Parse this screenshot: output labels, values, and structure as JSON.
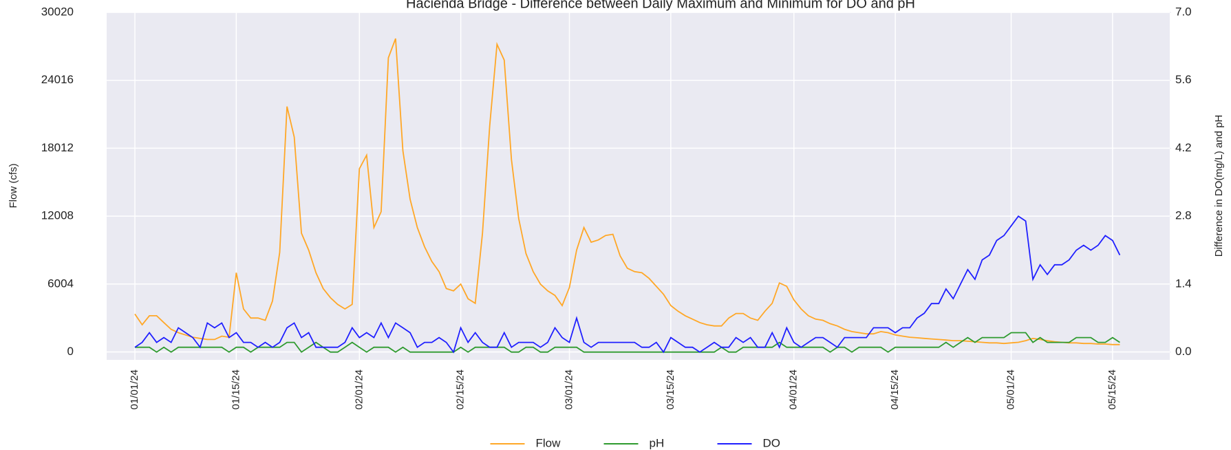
{
  "chart_data": {
    "type": "line",
    "title": "Hacienda Bridge - Difference between Daily Maximum and Minimum for DO and pH",
    "ylabel": "Flow (cfs)",
    "y2label": "Difference in DO(mg/L) and pH",
    "x": [
      "01/01/24",
      "01/02/24",
      "01/03/24",
      "01/04/24",
      "01/05/24",
      "01/06/24",
      "01/07/24",
      "01/08/24",
      "01/09/24",
      "01/10/24",
      "01/11/24",
      "01/12/24",
      "01/13/24",
      "01/14/24",
      "01/15/24",
      "01/16/24",
      "01/17/24",
      "01/18/24",
      "01/19/24",
      "01/20/24",
      "01/21/24",
      "01/22/24",
      "01/23/24",
      "01/24/24",
      "01/25/24",
      "01/26/24",
      "01/27/24",
      "01/28/24",
      "01/29/24",
      "01/30/24",
      "01/31/24",
      "02/01/24",
      "02/02/24",
      "02/03/24",
      "02/04/24",
      "02/05/24",
      "02/06/24",
      "02/07/24",
      "02/08/24",
      "02/09/24",
      "02/10/24",
      "02/11/24",
      "02/12/24",
      "02/13/24",
      "02/14/24",
      "02/15/24",
      "02/16/24",
      "02/17/24",
      "02/18/24",
      "02/19/24",
      "02/20/24",
      "02/21/24",
      "02/22/24",
      "02/23/24",
      "02/24/24",
      "02/25/24",
      "02/26/24",
      "02/27/24",
      "02/28/24",
      "02/29/24",
      "03/01/24",
      "03/02/24",
      "03/03/24",
      "03/04/24",
      "03/05/24",
      "03/06/24",
      "03/07/24",
      "03/08/24",
      "03/09/24",
      "03/10/24",
      "03/11/24",
      "03/12/24",
      "03/13/24",
      "03/14/24",
      "03/15/24",
      "03/16/24",
      "03/17/24",
      "03/18/24",
      "03/19/24",
      "03/20/24",
      "03/21/24",
      "03/22/24",
      "03/23/24",
      "03/24/24",
      "03/25/24",
      "03/26/24",
      "03/27/24",
      "03/28/24",
      "03/29/24",
      "03/30/24",
      "03/31/24",
      "04/01/24",
      "04/02/24",
      "04/03/24",
      "04/04/24",
      "04/05/24",
      "04/06/24",
      "04/07/24",
      "04/08/24",
      "04/09/24",
      "04/10/24",
      "04/11/24",
      "04/12/24",
      "04/13/24",
      "04/14/24",
      "04/15/24",
      "04/16/24",
      "04/17/24",
      "04/18/24",
      "04/19/24",
      "04/20/24",
      "04/21/24",
      "04/22/24",
      "04/23/24",
      "04/24/24",
      "04/25/24",
      "04/26/24",
      "04/27/24",
      "04/28/24",
      "04/29/24",
      "04/30/24",
      "05/01/24",
      "05/02/24",
      "05/03/24",
      "05/04/24",
      "05/05/24",
      "05/06/24",
      "05/07/24",
      "05/08/24",
      "05/09/24",
      "05/10/24",
      "05/11/24",
      "05/12/24",
      "05/13/24",
      "05/14/24",
      "05/15/24",
      "05/16/24"
    ],
    "xticks": [
      "01/01/24",
      "01/15/24",
      "02/01/24",
      "02/15/24",
      "03/01/24",
      "03/15/24",
      "04/01/24",
      "04/15/24",
      "05/01/24",
      "05/15/24"
    ],
    "series": [
      {
        "name": "Flow",
        "color": "#ffa726",
        "axis": "y",
        "values": [
          3350,
          2400,
          3200,
          3200,
          2600,
          2000,
          1700,
          1500,
          1300,
          1200,
          1100,
          1100,
          1400,
          1300,
          7000,
          3800,
          3000,
          3000,
          2800,
          4500,
          8800,
          21700,
          19000,
          10500,
          9000,
          7000,
          5600,
          4800,
          4200,
          3800,
          4200,
          16200,
          17400,
          11000,
          12400,
          26000,
          27700,
          17800,
          13500,
          11000,
          9300,
          8000,
          7100,
          5600,
          5400,
          6000,
          4700,
          4300,
          10500,
          20000,
          27200,
          25800,
          17000,
          11800,
          8700,
          7100,
          6000,
          5400,
          5000,
          4100,
          5700,
          9000,
          11000,
          9700,
          9900,
          10300,
          10400,
          8500,
          7400,
          7100,
          7000,
          6500,
          5800,
          5100,
          4100,
          3600,
          3200,
          2900,
          2600,
          2400,
          2300,
          2300,
          3000,
          3400,
          3400,
          3000,
          2800,
          3600,
          4300,
          6100,
          5800,
          4600,
          3800,
          3200,
          2900,
          2800,
          2500,
          2300,
          2000,
          1800,
          1700,
          1600,
          1600,
          1800,
          1700,
          1500,
          1400,
          1300,
          1250,
          1200,
          1150,
          1100,
          1050,
          1000,
          1000,
          950,
          900,
          850,
          800,
          800,
          750,
          800,
          850,
          1000,
          1200,
          1100,
          1000,
          900,
          850,
          800,
          800,
          750,
          750,
          700,
          700,
          650,
          650
        ]
      },
      {
        "name": "pH",
        "color": "#2e9a2e",
        "axis": "y2",
        "values": [
          0.1,
          0.1,
          0.1,
          0,
          0.1,
          0,
          0.1,
          0.1,
          0.1,
          0.1,
          0.1,
          0.1,
          0.1,
          0,
          0.1,
          0.1,
          0,
          0.1,
          0.1,
          0.1,
          0.1,
          0.2,
          0.2,
          0,
          0.1,
          0.2,
          0.1,
          0,
          0,
          0.1,
          0.2,
          0.1,
          0,
          0.1,
          0.1,
          0.1,
          0,
          0.1,
          0,
          0,
          0,
          0,
          0,
          0,
          0,
          0.1,
          0,
          0.1,
          0.1,
          0.1,
          0.1,
          0.1,
          0,
          0,
          0.1,
          0.1,
          0,
          0,
          0.1,
          0.1,
          0.1,
          0.1,
          0,
          0,
          0,
          0,
          0,
          0,
          0,
          0,
          0,
          0,
          0,
          0,
          0,
          0,
          0,
          0,
          0,
          0,
          0,
          0.1,
          0,
          0,
          0.1,
          0.1,
          0.1,
          0.1,
          0.1,
          0.2,
          0.1,
          0.1,
          0.1,
          0.1,
          0.1,
          0.1,
          0,
          0.1,
          0.1,
          0,
          0.1,
          0.1,
          0.1,
          0.1,
          0,
          0.1,
          0.1,
          0.1,
          0.1,
          0.1,
          0.1,
          0.1,
          0.2,
          0.1,
          0.2,
          0.3,
          0.2,
          0.3,
          0.3,
          0.3,
          0.3,
          0.4,
          0.4,
          0.4,
          0.2,
          0.3,
          0.2,
          0.2,
          0.2,
          0.2,
          0.3,
          0.3,
          0.3,
          0.2,
          0.2,
          0.3,
          0.2
        ]
      },
      {
        "name": "DO",
        "color": "#1f1fff",
        "axis": "y2",
        "values": [
          0.1,
          0.2,
          0.4,
          0.2,
          0.3,
          0.2,
          0.5,
          0.4,
          0.3,
          0.1,
          0.6,
          0.5,
          0.6,
          0.3,
          0.4,
          0.2,
          0.2,
          0.1,
          0.2,
          0.1,
          0.2,
          0.5,
          0.6,
          0.3,
          0.4,
          0.1,
          0.1,
          0.1,
          0.1,
          0.2,
          0.5,
          0.3,
          0.4,
          0.3,
          0.6,
          0.3,
          0.6,
          0.5,
          0.4,
          0.1,
          0.2,
          0.2,
          0.3,
          0.2,
          0,
          0.5,
          0.2,
          0.4,
          0.2,
          0.1,
          0.1,
          0.4,
          0.1,
          0.2,
          0.2,
          0.2,
          0.1,
          0.2,
          0.5,
          0.3,
          0.2,
          0.7,
          0.2,
          0.1,
          0.2,
          0.2,
          0.2,
          0.2,
          0.2,
          0.2,
          0.1,
          0.1,
          0.2,
          0,
          0.3,
          0.2,
          0.1,
          0.1,
          0,
          0.1,
          0.2,
          0.1,
          0.1,
          0.3,
          0.2,
          0.3,
          0.1,
          0.1,
          0.4,
          0.1,
          0.5,
          0.2,
          0.1,
          0.2,
          0.3,
          0.3,
          0.2,
          0.1,
          0.3,
          0.3,
          0.3,
          0.3,
          0.5,
          0.5,
          0.5,
          0.4,
          0.5,
          0.5,
          0.7,
          0.8,
          1.0,
          1.0,
          1.3,
          1.1,
          1.4,
          1.7,
          1.5,
          1.9,
          2.0,
          2.3,
          2.4,
          2.6,
          2.8,
          2.7,
          1.5,
          1.8,
          1.6,
          1.8,
          1.8,
          1.9,
          2.1,
          2.2,
          2.1,
          2.2,
          2.4,
          2.3,
          2.0
        ]
      }
    ],
    "ylim": [
      -700,
      30020
    ],
    "yticks": [
      0,
      6004,
      12008,
      18012,
      24016,
      30020
    ],
    "y2lim": [
      -0.16,
      7.0
    ],
    "y2ticks": [
      {
        "value": 0,
        "label": "0.0"
      },
      {
        "value": 1.4,
        "label": "1.4"
      },
      {
        "value": 2.8,
        "label": "2.8"
      },
      {
        "value": 4.2,
        "label": "4.2"
      },
      {
        "value": 5.6,
        "label": "5.6"
      },
      {
        "value": 7.0,
        "label": "7.0"
      }
    ],
    "grid": true,
    "legend": "bottom"
  }
}
